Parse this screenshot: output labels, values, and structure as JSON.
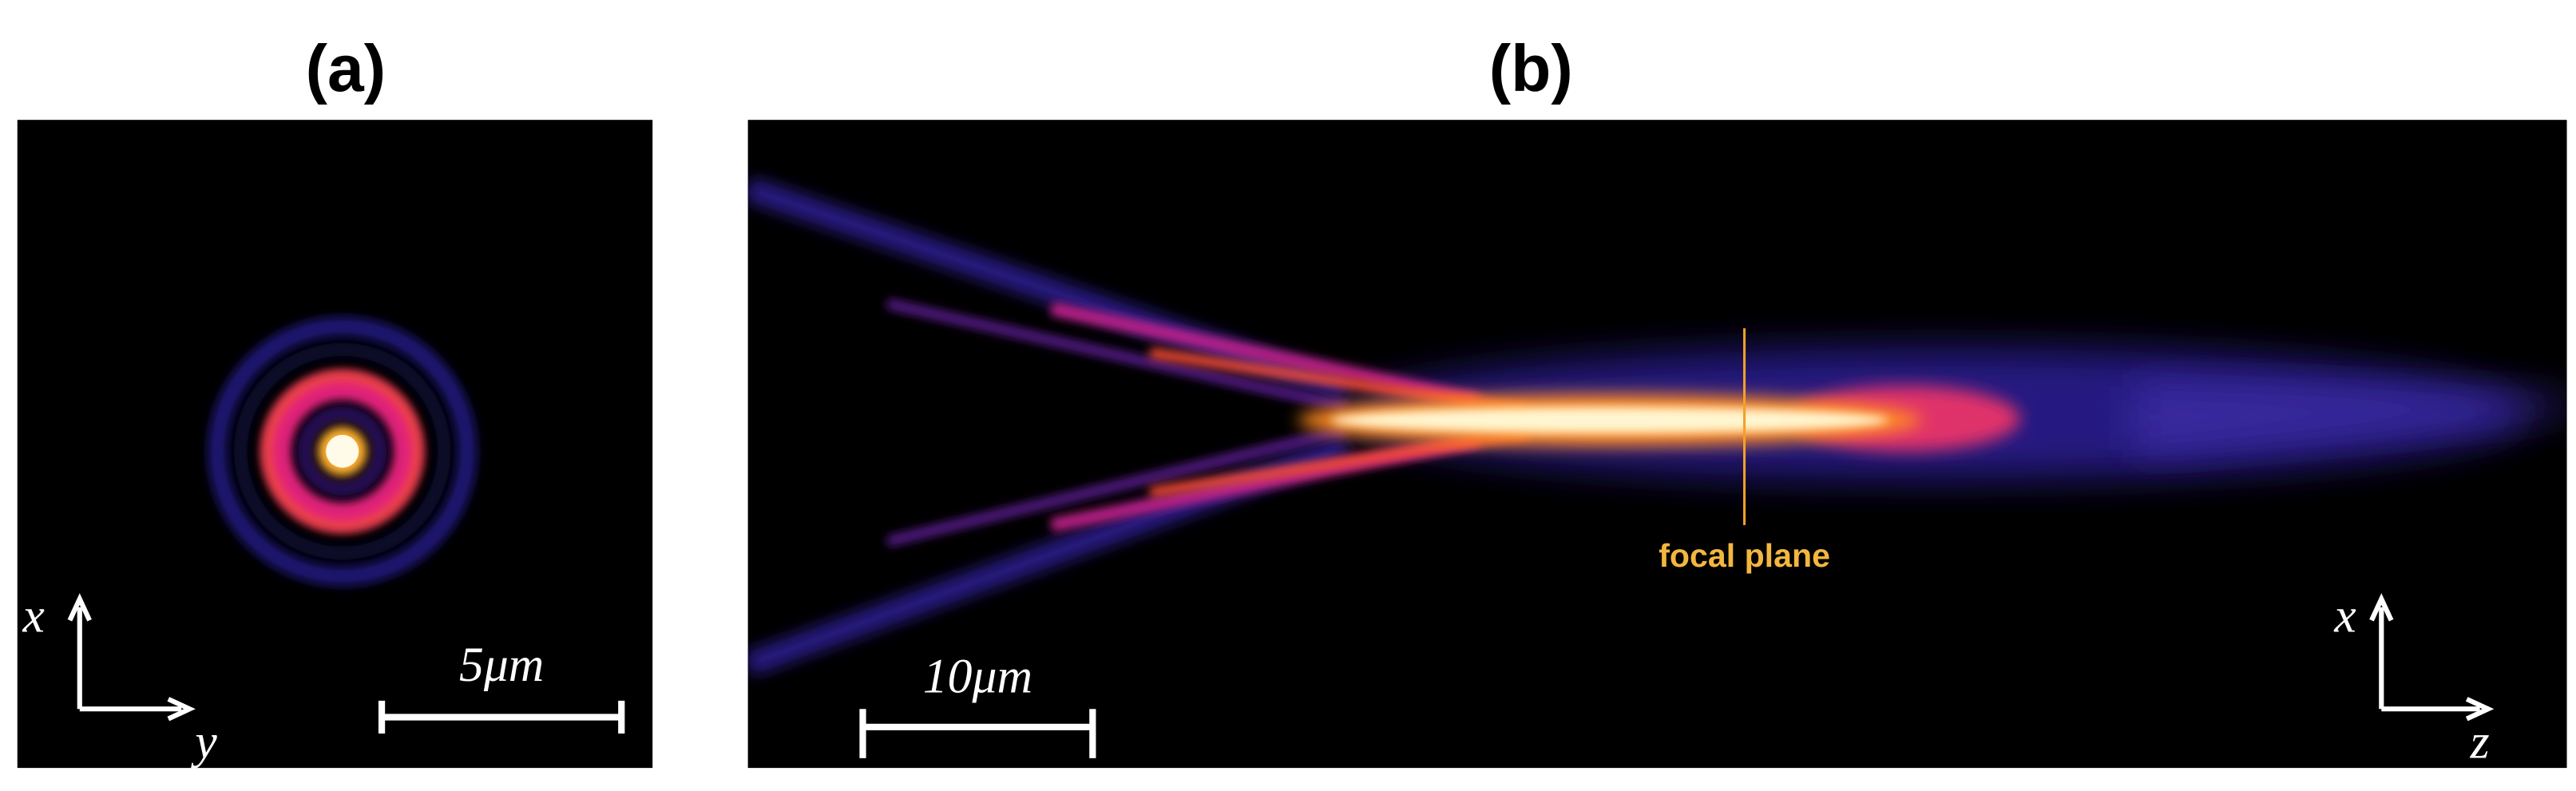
{
  "panels": [
    {
      "label": "(a)",
      "axis_vertical": "x",
      "axis_horizontal": "y",
      "scale_bar": "5μm"
    },
    {
      "label": "(b)",
      "axis_vertical": "x",
      "axis_horizontal": "z",
      "scale_bar": "10μm",
      "annotation": "focal plane"
    }
  ]
}
